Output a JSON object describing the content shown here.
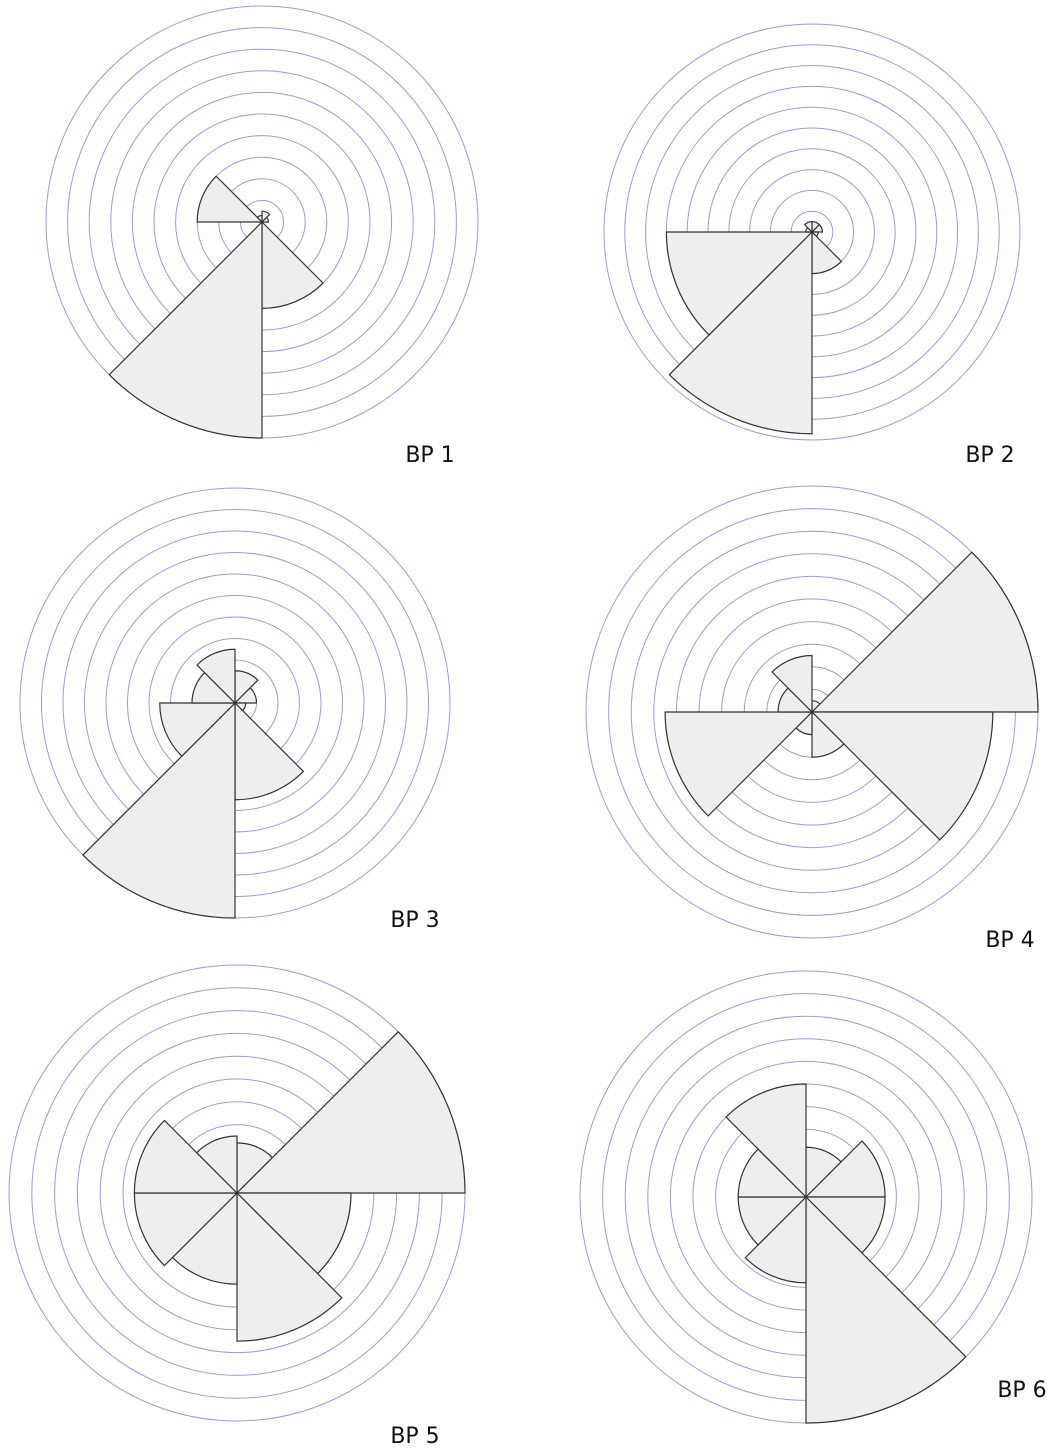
{
  "chart_data": [
    {
      "type": "rose",
      "title": "BP 1",
      "values": [
        0.5,
        0.3,
        0,
        4,
        10,
        0,
        3,
        0.3
      ],
      "rlim": [
        0,
        10
      ],
      "rticks": [
        1,
        2,
        3,
        4,
        5,
        6,
        7,
        8,
        9,
        10
      ],
      "grid": true,
      "color": "#eeeeee",
      "grid_color": "#9999ee"
    },
    {
      "type": "rose",
      "title": "BP 2",
      "values": [
        0.5,
        0.5,
        0.3,
        2,
        9.7,
        7,
        0.3,
        0.5
      ],
      "rlim": [
        0,
        10
      ],
      "rticks": [
        1,
        2,
        3,
        4,
        5,
        6,
        7,
        8,
        9,
        10
      ],
      "grid": true,
      "color": "#eeeeee",
      "grid_color": "#9999ee"
    },
    {
      "type": "rose",
      "title": "BP 3",
      "values": [
        1.5,
        1,
        0.5,
        4.5,
        10,
        3.5,
        2,
        2.5
      ],
      "rlim": [
        0,
        10
      ],
      "rticks": [
        1,
        2,
        3,
        4,
        5,
        6,
        7,
        8,
        9,
        10
      ],
      "grid": true,
      "color": "#eeeeee",
      "grid_color": "#9999ee"
    },
    {
      "type": "rose",
      "title": "BP 4",
      "values": [
        0.5,
        10,
        8,
        2,
        1,
        6.5,
        1.5,
        2.5
      ],
      "rlim": [
        0,
        10
      ],
      "rticks": [
        1,
        2,
        3,
        4,
        5,
        6,
        7,
        8,
        9,
        10
      ],
      "grid": true,
      "color": "#eeeeee",
      "grid_color": "#9999ee"
    },
    {
      "type": "rose",
      "title": "BP 5",
      "values": [
        2.2,
        10,
        5,
        6.5,
        4,
        4.5,
        4.5,
        2.5
      ],
      "rlim": [
        0,
        10
      ],
      "rticks": [
        1,
        2,
        3,
        4,
        5,
        6,
        7,
        8,
        9,
        10
      ],
      "grid": true,
      "color": "#eeeeee",
      "grid_color": "#9999ee"
    },
    {
      "type": "rose",
      "title": "BP 6",
      "values": [
        2.2,
        3.5,
        3.5,
        10,
        3.8,
        3,
        3,
        5
      ],
      "rlim": [
        0,
        10
      ],
      "rticks": [
        1,
        2,
        3,
        4,
        5,
        6,
        7,
        8,
        9,
        10
      ],
      "grid": true,
      "color": "#eeeeee",
      "grid_color": "#9999ee"
    }
  ]
}
